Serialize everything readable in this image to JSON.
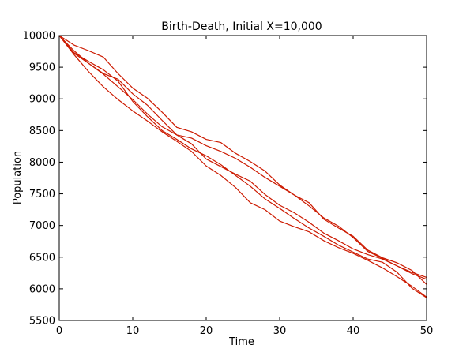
{
  "chart_data": {
    "type": "line",
    "title": "Birth-Death, Initial X=10,000",
    "xlabel": "Time",
    "ylabel": "Population",
    "xlim": [
      0,
      50
    ],
    "ylim": [
      5500,
      10000
    ],
    "x_ticks": [
      0,
      10,
      20,
      30,
      40,
      50
    ],
    "y_ticks": [
      5500,
      6000,
      6500,
      7000,
      7500,
      8000,
      8500,
      9000,
      9500,
      10000
    ],
    "grid": false,
    "legend": "none",
    "line_color": "#cc1a00",
    "series": [
      {
        "x": [
          0,
          2,
          4,
          6,
          8,
          10,
          12,
          14,
          16,
          18,
          20,
          22,
          24,
          26,
          28,
          30,
          32,
          34,
          36,
          38,
          40,
          42,
          44,
          46,
          48,
          50
        ],
        "y": [
          10000,
          9700,
          9430,
          9190,
          8990,
          8810,
          8650,
          8480,
          8330,
          8170,
          7940,
          7790,
          7600,
          7360,
          7250,
          7070,
          6980,
          6900,
          6760,
          6650,
          6560,
          6450,
          6330,
          6190,
          6040,
          5870
        ]
      },
      {
        "x": [
          0,
          2,
          4,
          6,
          8,
          10,
          12,
          14,
          16,
          18,
          20,
          22,
          24,
          26,
          28,
          30,
          32,
          34,
          36,
          38,
          40,
          42,
          44,
          46,
          48,
          50
        ],
        "y": [
          10000,
          9850,
          9760,
          9660,
          9400,
          9170,
          9010,
          8790,
          8550,
          8480,
          8360,
          8310,
          8140,
          8010,
          7860,
          7640,
          7480,
          7360,
          7100,
          6960,
          6830,
          6610,
          6490,
          6410,
          6290,
          6070
        ]
      },
      {
        "x": [
          0,
          2,
          4,
          6,
          8,
          10,
          12,
          14,
          16,
          18,
          20,
          22,
          24,
          26,
          28,
          30,
          32,
          34,
          36,
          38,
          40,
          42,
          44,
          46,
          48,
          50
        ],
        "y": [
          10000,
          9760,
          9560,
          9400,
          9310,
          9080,
          8900,
          8660,
          8430,
          8380,
          8260,
          8170,
          8060,
          7920,
          7760,
          7620,
          7480,
          7310,
          7120,
          6990,
          6810,
          6590,
          6480,
          6360,
          6240,
          6150
        ]
      },
      {
        "x": [
          0,
          2,
          4,
          6,
          8,
          10,
          12,
          14,
          16,
          18,
          20,
          22,
          24,
          26,
          28,
          30,
          32,
          34,
          36,
          38,
          40,
          42,
          44,
          46,
          48,
          50
        ],
        "y": [
          10000,
          9720,
          9560,
          9390,
          9190,
          8990,
          8760,
          8560,
          8430,
          8290,
          8050,
          7930,
          7810,
          7700,
          7490,
          7320,
          7200,
          7050,
          6880,
          6760,
          6630,
          6540,
          6470,
          6360,
          6260,
          6180
        ]
      },
      {
        "x": [
          0,
          2,
          4,
          6,
          8,
          10,
          12,
          14,
          16,
          18,
          20,
          22,
          24,
          26,
          28,
          30,
          32,
          34,
          36,
          38,
          40,
          42,
          44,
          46,
          48,
          50
        ],
        "y": [
          10000,
          9730,
          9590,
          9460,
          9280,
          8960,
          8720,
          8500,
          8360,
          8210,
          8100,
          7960,
          7790,
          7620,
          7420,
          7270,
          7110,
          6960,
          6830,
          6690,
          6580,
          6470,
          6420,
          6260,
          6010,
          5860
        ]
      }
    ]
  }
}
